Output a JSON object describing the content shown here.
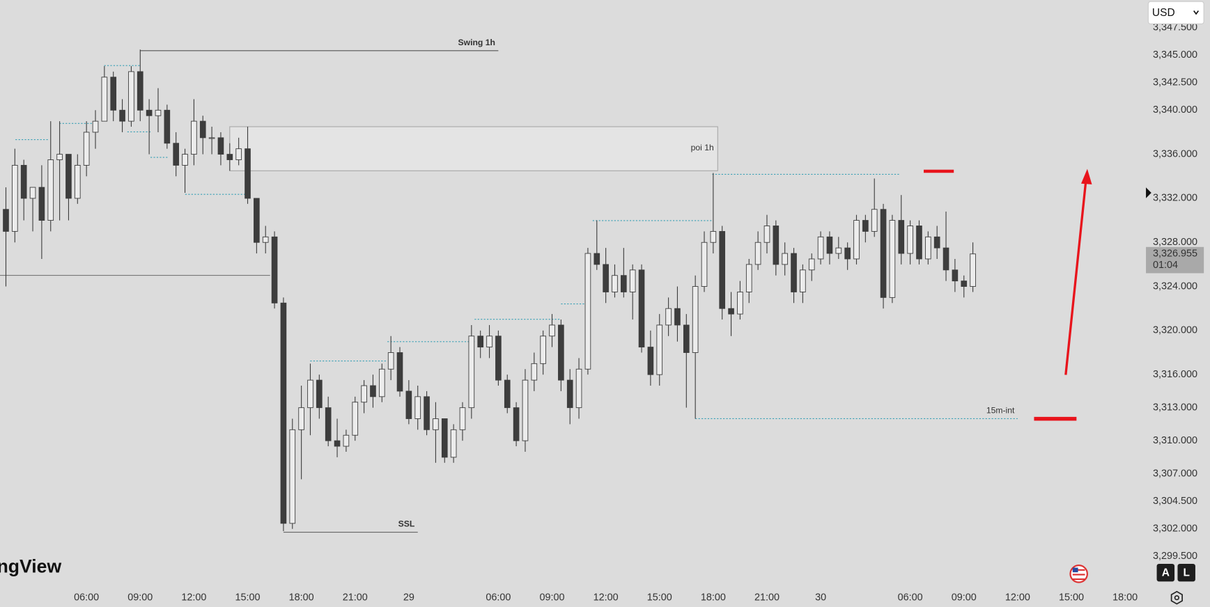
{
  "chart_data": {
    "type": "candlestick",
    "currency": "USD",
    "watermark": "ngView",
    "buttons": [
      "A",
      "L"
    ],
    "up_color": "#ececec",
    "down_color": "#3d3d3d",
    "xlim": [
      -0.66,
      126.9
    ],
    "ylim": [
      3296.8,
      3350.0
    ],
    "xticks": [
      {
        "value": 9,
        "label": "06:00"
      },
      {
        "value": 15,
        "label": "09:00"
      },
      {
        "value": 21,
        "label": "12:00"
      },
      {
        "value": 27,
        "label": "15:00"
      },
      {
        "value": 33,
        "label": "18:00"
      },
      {
        "value": 39,
        "label": "21:00"
      },
      {
        "value": 45,
        "label": "29"
      },
      {
        "value": 55,
        "label": "06:00"
      },
      {
        "value": 61,
        "label": "09:00"
      },
      {
        "value": 67,
        "label": "12:00"
      },
      {
        "value": 73,
        "label": "15:00"
      },
      {
        "value": 79,
        "label": "18:00"
      },
      {
        "value": 85,
        "label": "21:00"
      },
      {
        "value": 91,
        "label": "30"
      },
      {
        "value": 101,
        "label": "06:00"
      },
      {
        "value": 107,
        "label": "09:00"
      },
      {
        "value": 113,
        "label": "12:00"
      },
      {
        "value": 119,
        "label": "15:00"
      },
      {
        "value": 125,
        "label": "18:00"
      }
    ],
    "yticks": [
      {
        "value": 3347.5,
        "label": "3,347.500"
      },
      {
        "value": 3345,
        "label": "3,345.000"
      },
      {
        "value": 3342.5,
        "label": "3,342.500"
      },
      {
        "value": 3340,
        "label": "3,340.000"
      },
      {
        "value": 3336,
        "label": "3,336.000"
      },
      {
        "value": 3332,
        "label": "3,332.000"
      },
      {
        "value": 3328,
        "label": "3,328.000"
      },
      {
        "value": 3324,
        "label": "3,324.000"
      },
      {
        "value": 3320,
        "label": "3,320.000"
      },
      {
        "value": 3316,
        "label": "3,316.000"
      },
      {
        "value": 3313,
        "label": "3,313.000"
      },
      {
        "value": 3310,
        "label": "3,310.000"
      },
      {
        "value": 3307,
        "label": "3,307.000"
      },
      {
        "value": 3304.5,
        "label": "3,304.500"
      },
      {
        "value": 3302,
        "label": "3,302.000"
      },
      {
        "value": 3299.5,
        "label": "3,299.500"
      }
    ],
    "last_price": {
      "value": 3326.955,
      "label": "3,326.955"
    },
    "countdown": "01:04",
    "open": [
      3331,
      3329,
      3335,
      3332,
      3333,
      3330,
      3335.5,
      3336,
      3332,
      3335,
      3338,
      3339,
      3343,
      3340,
      3339,
      3343.5,
      3340,
      3339.5,
      3340,
      3337,
      3335,
      3336,
      3339,
      3337.5,
      3337.5,
      3336,
      3335.5,
      3336.5,
      3332,
      3328,
      3328.5,
      3322.5,
      3302.5,
      3311,
      3313,
      3315.5,
      3313,
      3310,
      3309.5,
      3310.5,
      3313.5,
      3315,
      3314,
      3316.5,
      3318,
      3314.5,
      3312,
      3314,
      3311,
      3312,
      3308.5,
      3311,
      3313,
      3319.5,
      3318.5,
      3319.5,
      3315.5,
      3313,
      3310,
      3315.5,
      3317,
      3319.5,
      3320.5,
      3315.5,
      3313,
      3316.5,
      3327,
      3326,
      3323.5,
      3325,
      3323.5,
      3325.5,
      3318.5,
      3316,
      3320.5,
      3322,
      3320.5,
      3318,
      3324,
      3328,
      3329,
      3322,
      3321.5,
      3323.5,
      3326,
      3328,
      3329.5,
      3326,
      3327,
      3323.5,
      3325.5,
      3326.5,
      3328.5,
      3327,
      3327.5,
      3326.5,
      3330,
      3329,
      3331,
      3323,
      3330,
      3327,
      3329.5,
      3326.5,
      3328.5,
      3327.5,
      3325.5,
      3324.5,
      3324
    ],
    "high": [
      3333,
      3336.5,
      3335.5,
      3333,
      3335,
      3339,
      3339,
      3336,
      3336,
      3339,
      3340,
      3344,
      3343.5,
      3341,
      3344,
      3345.5,
      3341,
      3342,
      3340.5,
      3338,
      3336.5,
      3341,
      3339.5,
      3338.5,
      3338,
      3337,
      3337.5,
      3338.5,
      3332,
      3329.5,
      3329,
      3323,
      3312,
      3315,
      3317,
      3316,
      3314,
      3312,
      3311,
      3314,
      3315.5,
      3316,
      3317,
      3319.5,
      3318.5,
      3315.5,
      3315,
      3314.5,
      3313.5,
      3312,
      3311.5,
      3313.5,
      3320.5,
      3320,
      3320.5,
      3320,
      3316,
      3313.5,
      3316.5,
      3318,
      3320,
      3321.5,
      3321,
      3316.5,
      3317.5,
      3327.5,
      3330,
      3327.5,
      3326,
      3327.5,
      3326,
      3326,
      3320,
      3321.5,
      3323,
      3324,
      3321.5,
      3325,
      3329,
      3334.3,
      3329.5,
      3323.5,
      3324.5,
      3326.5,
      3329,
      3330.5,
      3330,
      3328,
      3327.5,
      3326,
      3327,
      3329,
      3329,
      3328.5,
      3328,
      3330.5,
      3330.5,
      3333.8,
      3331.5,
      3330.5,
      3332.3,
      3330,
      3330,
      3329,
      3329.5,
      3330.8,
      3326.5,
      3325,
      3328
    ],
    "low": [
      3324,
      3328,
      3330,
      3329,
      3326.5,
      3329,
      3330,
      3330,
      3331.5,
      3334,
      3336.5,
      3339,
      3339,
      3338,
      3338.5,
      3339,
      3336,
      3338,
      3336.5,
      3334,
      3332.5,
      3335,
      3336,
      3336,
      3335,
      3334.5,
      3335,
      3331.5,
      3327,
      3327,
      3322,
      3301.8,
      3302,
      3306.5,
      3310.5,
      3312,
      3309.5,
      3308.5,
      3309,
      3310,
      3312.5,
      3313,
      3313.5,
      3315.5,
      3314,
      3311.5,
      3311,
      3310.5,
      3308,
      3308,
      3308,
      3310,
      3312,
      3317.5,
      3317.5,
      3315,
      3312.5,
      3309.5,
      3309,
      3314.5,
      3316,
      3318.5,
      3314.5,
      3311.5,
      3312,
      3316,
      3325.5,
      3322.5,
      3323,
      3323,
      3321,
      3318,
      3315,
      3315,
      3319.5,
      3319,
      3313,
      3312,
      3323.5,
      3327,
      3321,
      3319.5,
      3321,
      3322.5,
      3325.5,
      3327,
      3325,
      3325,
      3322.5,
      3322.5,
      3324.5,
      3326,
      3326,
      3326.5,
      3325.5,
      3326,
      3328,
      3328.5,
      3322,
      3322.5,
      3326,
      3326,
      3326,
      3326,
      3326.5,
      3324.5,
      3323.5,
      3323,
      3323.5
    ],
    "close": [
      3329,
      3335,
      3332,
      3333,
      3330,
      3335.5,
      3336,
      3332,
      3335,
      3338,
      3339,
      3343,
      3340,
      3339,
      3343.5,
      3340,
      3339.5,
      3340,
      3337,
      3335,
      3336,
      3339,
      3337.5,
      3337.5,
      3336,
      3335.5,
      3336.5,
      3332,
      3328,
      3328.5,
      3322.5,
      3302.5,
      3311,
      3313,
      3315.5,
      3313,
      3310,
      3309.5,
      3310.5,
      3313.5,
      3315,
      3314,
      3316.5,
      3318,
      3314.5,
      3312,
      3314,
      3311,
      3312,
      3308.5,
      3311,
      3313,
      3319.5,
      3318.5,
      3319.5,
      3315.5,
      3313,
      3310,
      3315.5,
      3317,
      3319.5,
      3320.5,
      3315.5,
      3313,
      3316.5,
      3327,
      3326,
      3323.5,
      3325,
      3323.5,
      3325.5,
      3318.5,
      3316,
      3320.5,
      3322,
      3320.5,
      3318,
      3324,
      3328,
      3329,
      3322,
      3321.5,
      3323.5,
      3326,
      3328,
      3329.5,
      3326,
      3327,
      3323.5,
      3325.5,
      3326.5,
      3328.5,
      3327,
      3327.5,
      3326.5,
      3330,
      3329,
      3331,
      3323,
      3330,
      3327,
      3329.5,
      3326.5,
      3328.5,
      3327.5,
      3325.5,
      3324.5,
      3324,
      3326.955
    ],
    "annotations": [
      {
        "kind": "line",
        "text": "Swing 1h",
        "value": 3345.4,
        "x": [
          15,
          55
        ],
        "color": "#555555",
        "dashed": false
      },
      {
        "kind": "zone",
        "text": "poi 1h",
        "range": [
          3334.5,
          3338.5
        ],
        "x": [
          25,
          79.5
        ],
        "color": "#a8a8a8"
      },
      {
        "kind": "line",
        "text": "SSL",
        "value": 3301.7,
        "x": [
          31,
          46
        ],
        "color": "#666666",
        "dashed": false
      },
      {
        "kind": "line",
        "text": "15m-int",
        "value": 3312.0,
        "x": [
          77,
          113
        ],
        "color": "#3aa0b5",
        "dashed": true
      }
    ]
  }
}
